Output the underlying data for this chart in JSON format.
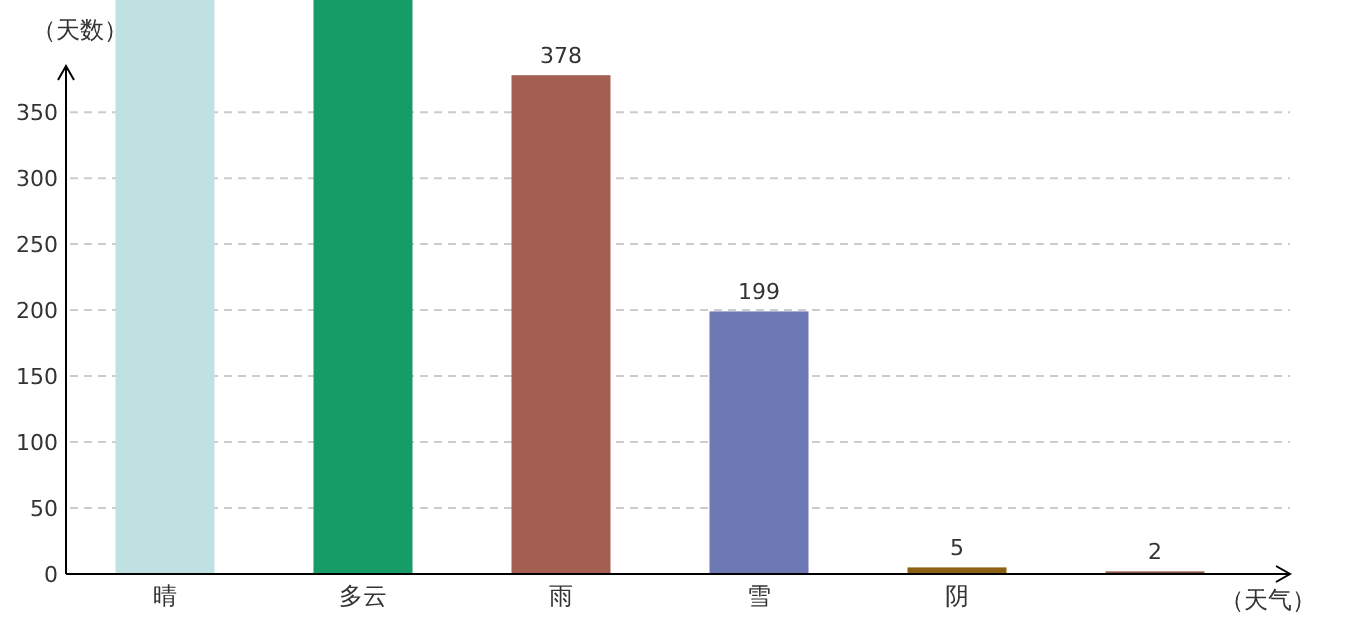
{
  "chart_data": {
    "type": "bar",
    "ylabel": "（天数）",
    "xlabel": "（天气）",
    "categories": [
      "晴",
      "多云",
      "雨",
      "雪",
      "阴",
      null
    ],
    "values": [
      435,
      435,
      378,
      199,
      5,
      2
    ],
    "colors": [
      "#bfe1e2",
      "#169c66",
      "#a55e52",
      "#6e78b4",
      "#8b6014",
      "#8f5a4e"
    ],
    "value_labels": [
      null,
      null,
      "378",
      "199",
      "5",
      "2"
    ],
    "ylim": [
      0,
      435
    ],
    "yticks": [
      0,
      50,
      100,
      150,
      200,
      250,
      300,
      350
    ],
    "grid": "y"
  }
}
